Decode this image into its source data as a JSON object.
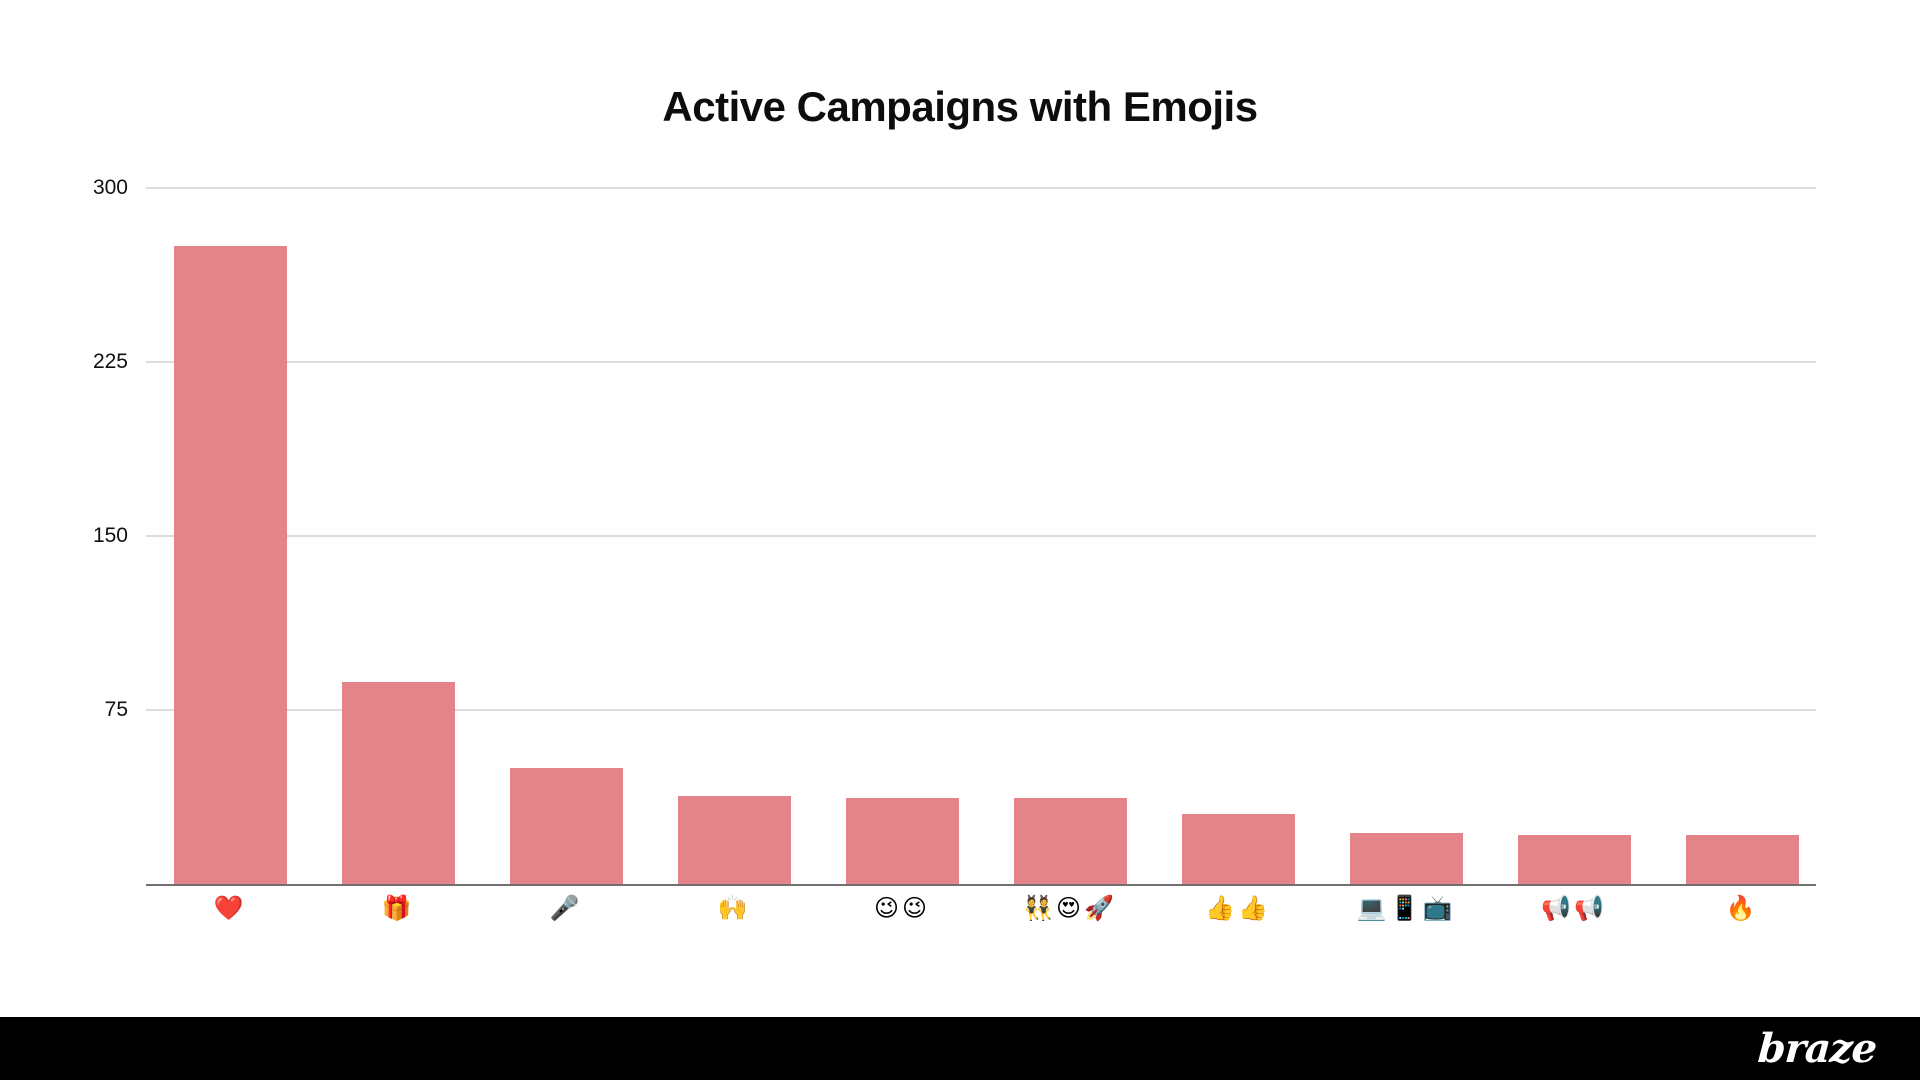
{
  "page": {
    "background": "#ffffff"
  },
  "header": {
    "title": "Active Campaigns with Emojis"
  },
  "chart_data": {
    "type": "bar",
    "title": "Active Campaigns with Emojis",
    "categories": [
      "❤️",
      "🎁",
      "🎤",
      "🙌",
      "😉😉",
      "👯😍🚀",
      "👍👍",
      "💻📱📺",
      "📢📢",
      "🔥"
    ],
    "values": [
      275,
      87,
      50,
      38,
      37,
      37,
      30,
      22,
      21,
      21
    ],
    "yticks": [
      300,
      225,
      150,
      75
    ],
    "ylim": [
      0,
      300
    ],
    "xlabel": "",
    "ylabel": "",
    "grid": true,
    "legend": false,
    "bar_color": "#E5838B",
    "gridline_color": "#dcdcdc",
    "axis_line_color": "#6f6f6f",
    "tick_label_color": "#111111"
  },
  "footer": {
    "logo_text": "braze",
    "background": "#000000",
    "text_color": "#ffffff"
  }
}
